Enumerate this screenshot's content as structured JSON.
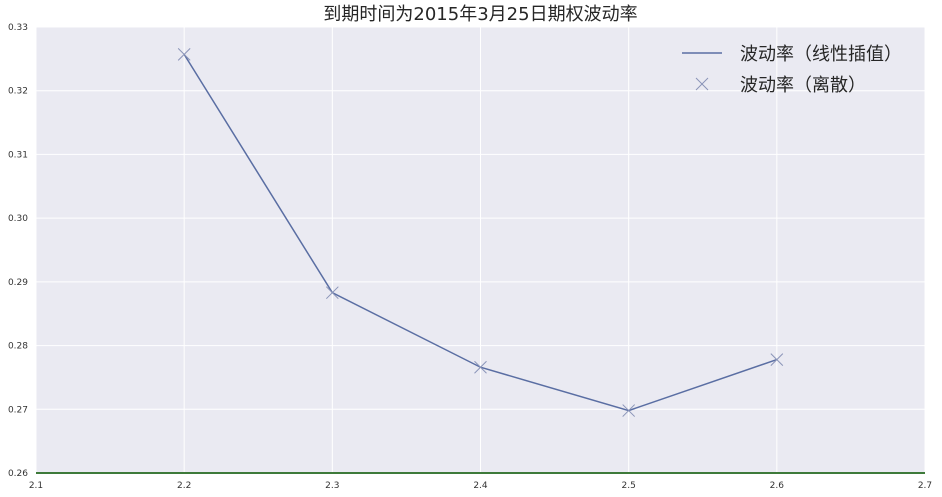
{
  "chart_data": {
    "type": "line",
    "title": "到期时间为2015年3月25日期权波动率",
    "xlabel": "",
    "ylabel": "",
    "xlim": [
      2.1,
      2.7
    ],
    "ylim": [
      0.26,
      0.33
    ],
    "x_ticks": [
      "2.1",
      "2.2",
      "2.3",
      "2.4",
      "2.5",
      "2.6",
      "2.7"
    ],
    "y_ticks": [
      "0.26",
      "0.27",
      "0.28",
      "0.29",
      "0.30",
      "0.31",
      "0.32",
      "0.33"
    ],
    "grid": true,
    "legend_position": "top-right",
    "series": [
      {
        "name": "波动率（线性插值）",
        "style": "line",
        "color": "#5a6ea3",
        "x": [
          2.2,
          2.3,
          2.4,
          2.5,
          2.6
        ],
        "y": [
          0.3257,
          0.2883,
          0.2766,
          0.2698,
          0.2778
        ]
      },
      {
        "name": "波动率（离散）",
        "style": "x-marker",
        "color": "#8a94b8",
        "x": [
          2.2,
          2.3,
          2.4,
          2.5,
          2.6
        ],
        "y": [
          0.3257,
          0.2883,
          0.2766,
          0.2698,
          0.2778
        ]
      }
    ],
    "colors": {
      "plot_background": "#eaeaf2",
      "grid": "#ffffff",
      "axis_base": "#3e7a3a"
    }
  }
}
